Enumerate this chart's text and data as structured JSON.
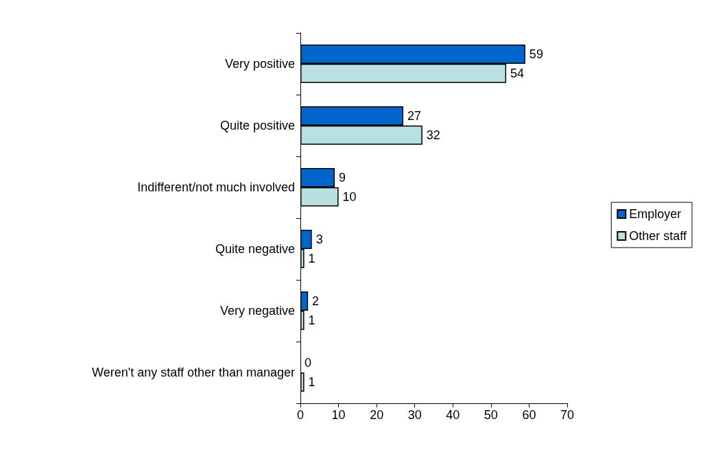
{
  "chart_data": {
    "type": "bar",
    "orientation": "horizontal",
    "categories": [
      "Very positive",
      "Quite positive",
      "Indifferent/not much involved",
      "Quite negative",
      "Very negative",
      "Weren't any staff other than manager"
    ],
    "series": [
      {
        "name": "Employer",
        "color": "#0066cc",
        "values": [
          59,
          27,
          9,
          3,
          2,
          0
        ]
      },
      {
        "name": "Other staff",
        "color": "#b8e0e0",
        "values": [
          54,
          32,
          10,
          1,
          1,
          1
        ]
      }
    ],
    "xlim": [
      0,
      70
    ],
    "xticks": [
      0,
      10,
      20,
      30,
      40,
      50,
      60,
      70
    ],
    "data_labels": true,
    "grid": false,
    "legend": "right"
  }
}
